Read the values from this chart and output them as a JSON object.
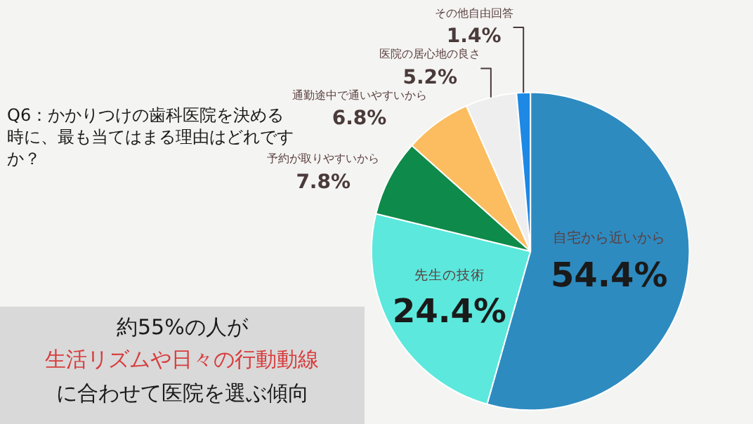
{
  "chart_data": {
    "type": "pie",
    "title": "Q6：かかりつけの歯科医院を決める時に、最も当てはまる理由はどれですか？",
    "categories": [
      "自宅から近いから",
      "先生の技術",
      "予約が取りやすいから",
      "通勤途中で通いやすいから",
      "医院の居心地の良さ",
      "その他自由回答"
    ],
    "values": [
      54.4,
      24.4,
      7.8,
      6.8,
      5.2,
      1.4
    ],
    "value_labels": [
      "54.4%",
      "24.4%",
      "7.8%",
      "6.8%",
      "5.2%",
      "1.4%"
    ],
    "colors": [
      "#2e8bc0",
      "#5ce8dc",
      "#0e8a4a",
      "#fbbd5f",
      "#eeeeee",
      "#1e88e5"
    ],
    "legend": false,
    "annotations": [
      "約55%の人が",
      "生活リズムや日々の行動動線",
      "に合わせて医院を選ぶ傾向"
    ]
  }
}
